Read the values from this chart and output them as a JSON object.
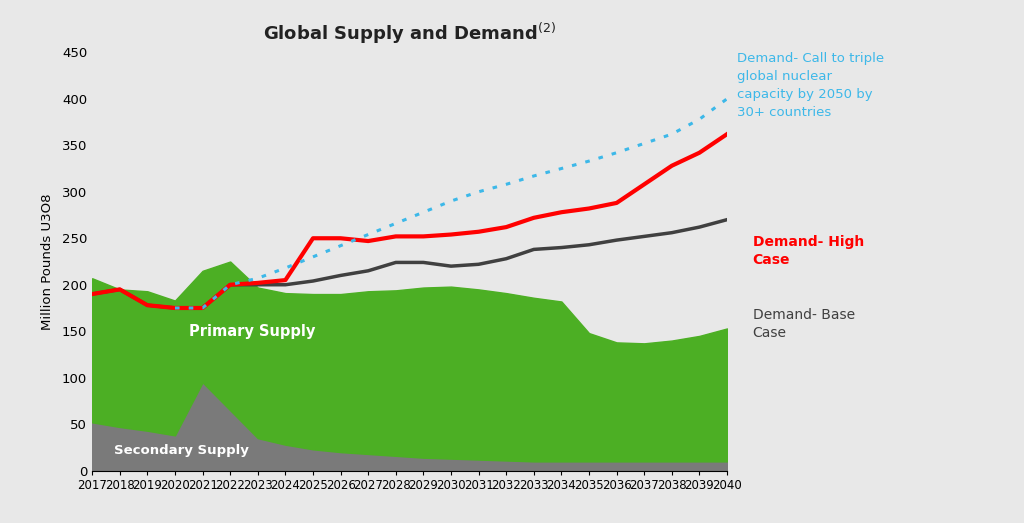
{
  "title": "Global Supply and Demand$^{(2)}$",
  "ylabel": "Million Pounds U3O8",
  "background_color": "#e8e8e8",
  "plot_bg_color": "#e8e8e8",
  "years": [
    2017,
    2018,
    2019,
    2020,
    2021,
    2022,
    2023,
    2024,
    2025,
    2026,
    2027,
    2028,
    2029,
    2030,
    2031,
    2032,
    2033,
    2034,
    2035,
    2036,
    2037,
    2038,
    2039,
    2040
  ],
  "primary_supply": [
    155,
    148,
    150,
    145,
    120,
    160,
    162,
    163,
    167,
    170,
    175,
    178,
    183,
    185,
    183,
    180,
    176,
    172,
    138,
    128,
    127,
    130,
    135,
    143
  ],
  "secondary_supply": [
    52,
    47,
    43,
    38,
    95,
    65,
    35,
    28,
    23,
    20,
    18,
    16,
    14,
    13,
    12,
    11,
    10,
    10,
    10,
    10,
    10,
    10,
    10,
    10
  ],
  "demand_base": [
    190,
    195,
    178,
    175,
    175,
    200,
    200,
    200,
    204,
    210,
    215,
    224,
    224,
    220,
    222,
    228,
    238,
    240,
    243,
    248,
    252,
    256,
    262,
    270
  ],
  "demand_high": [
    190,
    195,
    178,
    175,
    175,
    200,
    202,
    205,
    250,
    250,
    247,
    252,
    252,
    254,
    257,
    262,
    272,
    278,
    282,
    288,
    308,
    328,
    342,
    362
  ],
  "demand_triple": [
    null,
    null,
    null,
    null,
    175,
    null,
    null,
    null,
    null,
    null,
    null,
    null,
    null,
    null,
    null,
    null,
    null,
    null,
    null,
    null,
    null,
    null,
    null,
    400
  ],
  "demand_triple_x": [
    2020,
    2021,
    2022,
    2023,
    2024,
    2025,
    2026,
    2027,
    2028,
    2029,
    2030,
    2031,
    2032,
    2033,
    2034,
    2035,
    2036,
    2037,
    2038,
    2039,
    2040
  ],
  "demand_triple_y": [
    175,
    175,
    200,
    207,
    218,
    230,
    242,
    254,
    266,
    278,
    290,
    300,
    308,
    317,
    325,
    333,
    342,
    352,
    362,
    378,
    400
  ],
  "primary_color": "#4caf24",
  "secondary_color": "#7a7a7a",
  "demand_base_color": "#404040",
  "demand_high_color": "#ff0000",
  "demand_triple_color": "#3db8e8",
  "ylim": [
    0,
    450
  ],
  "yticks": [
    0,
    50,
    100,
    150,
    200,
    250,
    300,
    350,
    400,
    450
  ],
  "annotation_triple": "Demand- Call to triple\nglobal nuclear\ncapacity by 2050 by\n30+ countries",
  "annotation_high": "Demand- High\nCase",
  "annotation_base": "Demand- Base\nCase",
  "annotation_primary": "Primary Supply",
  "annotation_secondary": "Secondary Supply"
}
